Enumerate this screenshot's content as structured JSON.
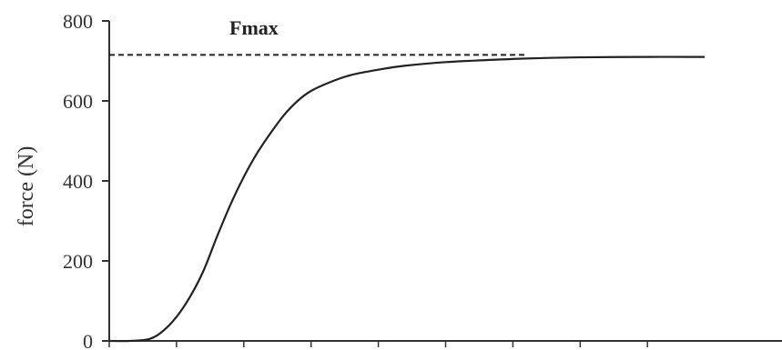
{
  "chart_data": {
    "type": "line",
    "title": "",
    "xlabel": "",
    "ylabel": "force  (N)",
    "ylim": [
      0,
      800
    ],
    "xlim": [
      0,
      10
    ],
    "x_ticks": [
      0,
      1,
      2,
      3,
      4,
      5,
      6,
      7,
      8
    ],
    "y_ticks": [
      0,
      200,
      400,
      600,
      800
    ],
    "y_tick_labels": [
      "0",
      "200",
      "400",
      "600",
      "800"
    ],
    "grid": false,
    "legend": "none",
    "series": [
      {
        "color": "#222222",
        "x": [
          0.0,
          0.3,
          0.6,
          0.8,
          1.0,
          1.2,
          1.4,
          1.6,
          1.8,
          2.0,
          2.2,
          2.4,
          2.6,
          2.8,
          3.0,
          3.3,
          3.6,
          4.0,
          4.4,
          5.0,
          5.6,
          6.2,
          7.0,
          8.0,
          8.85
        ],
        "y": [
          0,
          0,
          5,
          25,
          60,
          110,
          175,
          260,
          340,
          410,
          470,
          520,
          565,
          600,
          625,
          648,
          665,
          678,
          688,
          697,
          702,
          706,
          709,
          710,
          710
        ]
      }
    ],
    "reference_line": {
      "value": 715,
      "style": "dashed",
      "color": "#222222",
      "label": "Fmax"
    }
  }
}
